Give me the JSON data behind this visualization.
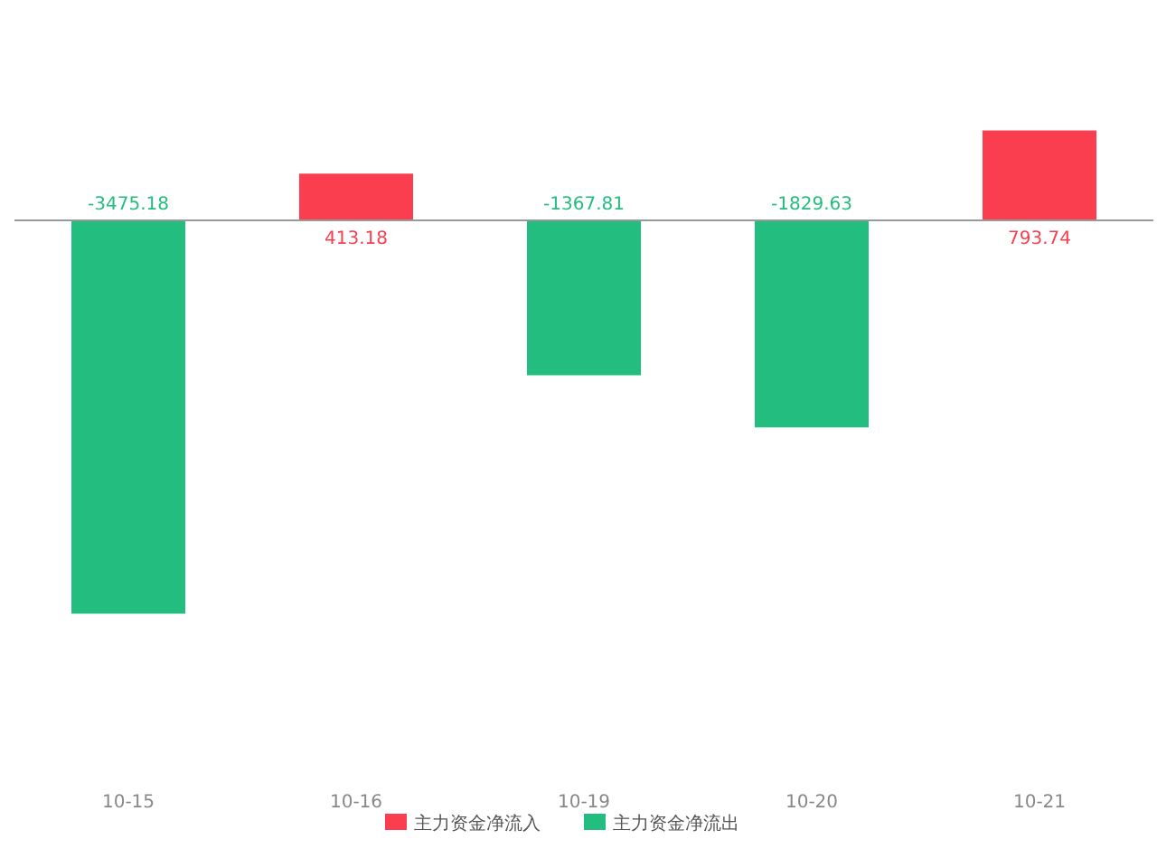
{
  "chart_data": {
    "type": "bar",
    "categories": [
      "10-15",
      "10-16",
      "10-19",
      "10-20",
      "10-21"
    ],
    "stacked": true,
    "data_labels": true,
    "legend": "bottom",
    "grid": false,
    "series": [
      {
        "name": "主力资金净流入",
        "color": "#fa3e4f",
        "values": [
          null,
          413.18,
          null,
          null,
          793.74
        ]
      },
      {
        "name": "主力资金净流出",
        "color": "#22bd7f",
        "values": [
          -3475.18,
          null,
          -1367.81,
          -1829.63,
          null
        ]
      }
    ]
  }
}
